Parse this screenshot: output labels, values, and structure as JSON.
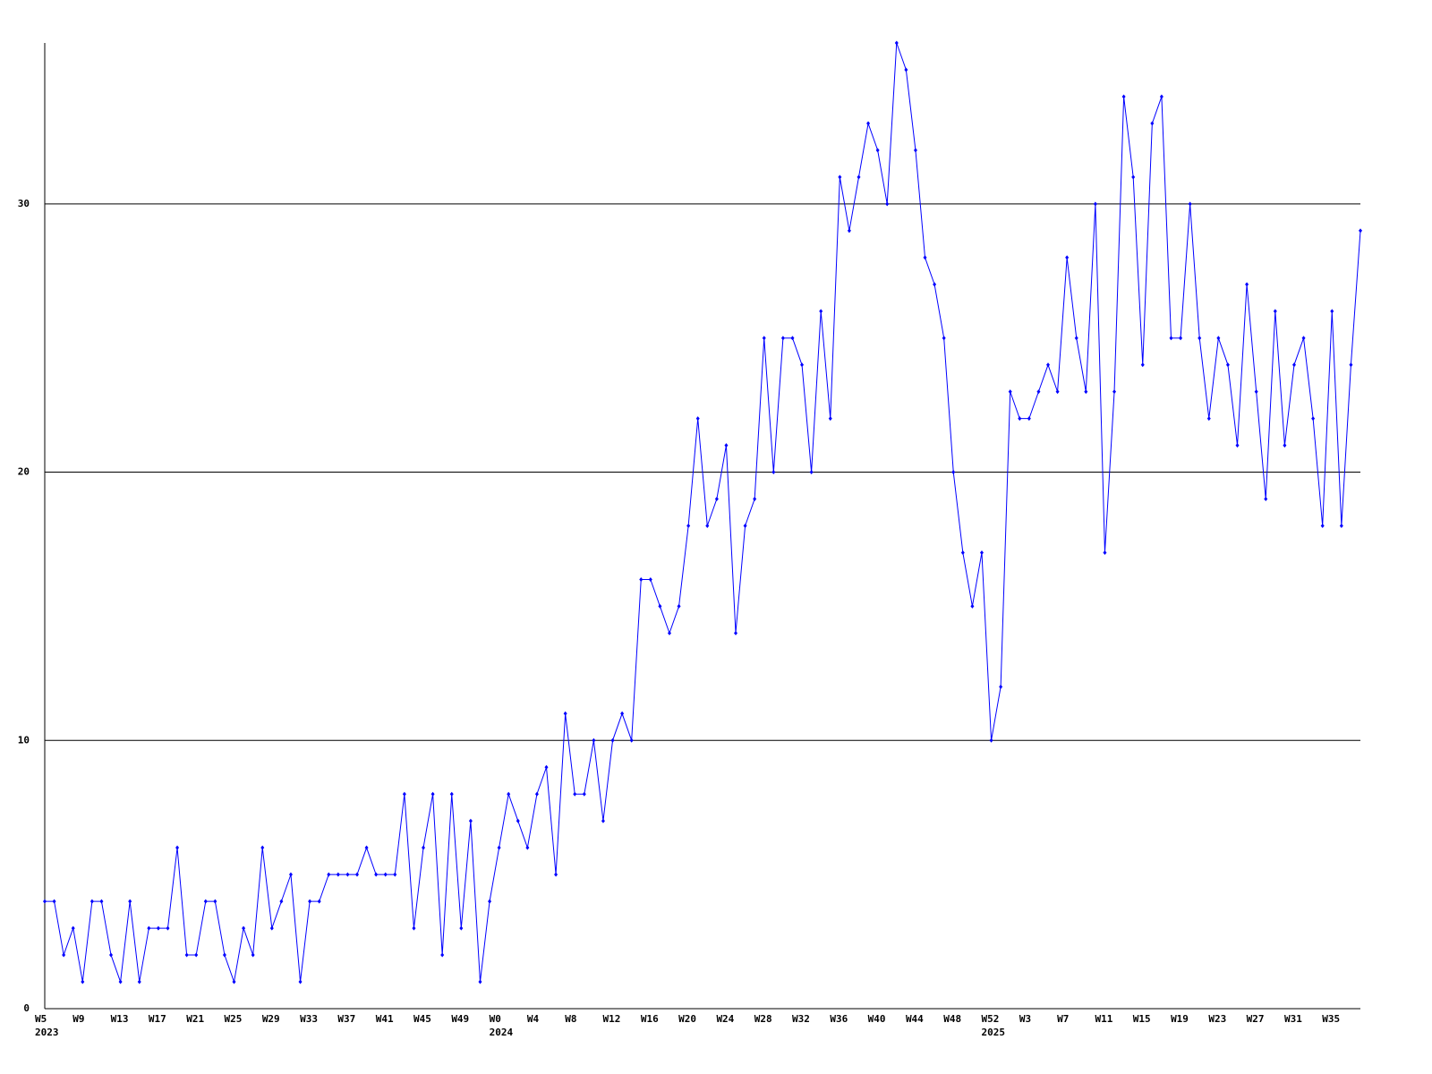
{
  "chart_data": {
    "type": "line",
    "categories": [
      "W5",
      null,
      null,
      null,
      "W9",
      null,
      null,
      null,
      "W13",
      null,
      null,
      null,
      "W17",
      null,
      null,
      null,
      "W21",
      null,
      null,
      null,
      "W25",
      null,
      null,
      null,
      "W29",
      null,
      null,
      null,
      "W33",
      null,
      null,
      null,
      "W37",
      null,
      null,
      null,
      "W41",
      null,
      null,
      null,
      "W45",
      null,
      null,
      null,
      "W49",
      null,
      null,
      null,
      "W0",
      null,
      null,
      null,
      "W4",
      null,
      null,
      null,
      "W8",
      null,
      null,
      null,
      "W12",
      null,
      null,
      null,
      "W16",
      null,
      null,
      null,
      "W20",
      null,
      null,
      null,
      "W24",
      null,
      null,
      null,
      "W28",
      null,
      null,
      null,
      "W32",
      null,
      null,
      null,
      "W36",
      null,
      null,
      null,
      "W40",
      null,
      null,
      null,
      "W44",
      null,
      null,
      null,
      "W48",
      null,
      null,
      null,
      "W52",
      null,
      null,
      null,
      "W3",
      null,
      null,
      null,
      "W7",
      null,
      null,
      null,
      "W11",
      null,
      null,
      null,
      "W15",
      null,
      null,
      null,
      "W19",
      null,
      null,
      null,
      "W23",
      null,
      null,
      null,
      "W27",
      null,
      null,
      null,
      "W31",
      null,
      null,
      null,
      "W35",
      null,
      null,
      null
    ],
    "category_years": [
      "2023",
      null,
      null,
      null,
      null,
      null,
      null,
      null,
      null,
      null,
      null,
      null,
      null,
      null,
      null,
      null,
      null,
      null,
      null,
      null,
      null,
      null,
      null,
      null,
      null,
      null,
      null,
      null,
      null,
      null,
      null,
      null,
      null,
      null,
      null,
      null,
      null,
      null,
      null,
      null,
      null,
      null,
      null,
      null,
      null,
      null,
      null,
      null,
      "2024",
      null,
      null,
      null,
      null,
      null,
      null,
      null,
      null,
      null,
      null,
      null,
      null,
      null,
      null,
      null,
      null,
      null,
      null,
      null,
      null,
      null,
      null,
      null,
      null,
      null,
      null,
      null,
      null,
      null,
      null,
      null,
      null,
      null,
      null,
      null,
      null,
      null,
      null,
      null,
      null,
      null,
      null,
      null,
      null,
      null,
      null,
      null,
      null,
      null,
      null,
      null,
      "2025",
      null,
      null,
      null,
      null,
      null,
      null,
      null,
      null,
      null,
      null,
      null,
      null,
      null,
      null,
      null,
      null,
      null,
      null,
      null,
      null,
      null,
      null,
      null,
      null,
      null,
      null,
      null,
      null,
      null,
      null,
      null,
      null,
      null,
      null,
      null,
      null,
      null,
      null
    ],
    "series": [
      {
        "color": "#0000ff",
        "values": [
          4,
          4,
          2,
          3,
          1,
          4,
          4,
          2,
          1,
          4,
          1,
          3,
          3,
          3,
          6,
          2,
          2,
          4,
          4,
          2,
          1,
          3,
          2,
          6,
          3,
          4,
          5,
          1,
          4,
          4,
          5,
          5,
          5,
          5,
          6,
          5,
          5,
          5,
          8,
          3,
          6,
          8,
          2,
          8,
          3,
          7,
          1,
          4,
          6,
          8,
          7,
          6,
          8,
          9,
          5,
          11,
          8,
          8,
          10,
          7,
          10,
          11,
          10,
          16,
          16,
          15,
          14,
          15,
          18,
          22,
          18,
          19,
          21,
          14,
          18,
          19,
          25,
          20,
          25,
          25,
          24,
          20,
          26,
          22,
          31,
          29,
          31,
          33,
          32,
          30,
          36,
          35,
          32,
          28,
          27,
          25,
          20,
          17,
          15,
          17,
          10,
          12,
          23,
          22,
          22,
          23,
          24,
          23,
          28,
          25,
          23,
          30,
          17,
          23,
          34,
          31,
          24,
          33,
          34,
          25,
          25,
          30,
          25,
          22,
          25,
          24,
          21,
          27,
          23,
          19,
          26,
          21,
          24,
          25,
          22,
          18,
          26,
          18,
          24,
          29
        ]
      }
    ],
    "ylim": [
      0,
      36
    ],
    "yticks": [
      0,
      10,
      20,
      30
    ],
    "grid": true
  }
}
